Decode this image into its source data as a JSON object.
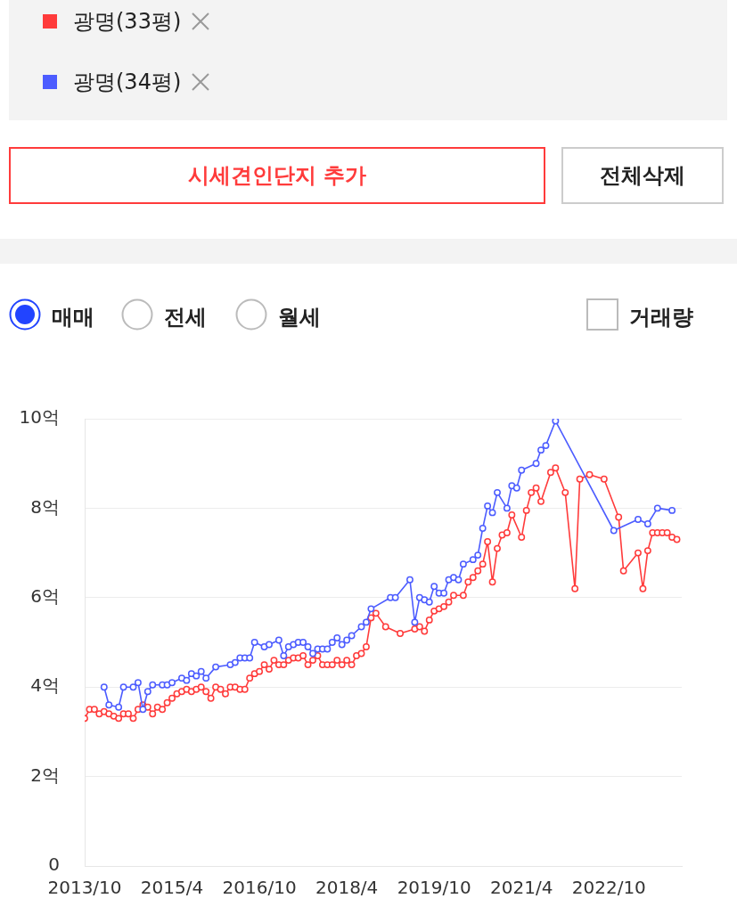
{
  "chart_data": {
    "type": "line",
    "legend": "top",
    "grid": "y",
    "marker": "circle",
    "line_style": "solid",
    "annotations": [
      "시세견인단지 추가",
      "전체삭제",
      "매매",
      "전세",
      "월세",
      "거래량"
    ],
    "xlim": [
      "2013-10",
      "2024-01"
    ],
    "xticks": [
      {
        "value": "2013-10",
        "label": "2013/10"
      },
      {
        "value": "2015-04",
        "label": "2015/4"
      },
      {
        "value": "2016-10",
        "label": "2016/10"
      },
      {
        "value": "2018-04",
        "label": "2018/4"
      },
      {
        "value": "2019-10",
        "label": "2019/10"
      },
      {
        "value": "2021-04",
        "label": "2021/4"
      },
      {
        "value": "2022-10",
        "label": "2022/10"
      }
    ],
    "ylim": [
      0,
      10
    ],
    "yticks": [
      0,
      {
        "value": 2,
        "label": "2억"
      },
      {
        "value": 4,
        "label": "4억"
      },
      {
        "value": 6,
        "label": "6억"
      },
      {
        "value": 8,
        "label": "8억"
      },
      {
        "value": 10,
        "label": "10억"
      }
    ],
    "series": [
      {
        "name": "광명(33평)",
        "color": "#ff3b3b",
        "x": [
          "2013-10",
          "2013-11",
          "2013-12",
          "2014-01",
          "2014-02",
          "2014-03",
          "2014-04",
          "2014-05",
          "2014-06",
          "2014-07",
          "2014-08",
          "2014-09",
          "2014-10",
          "2014-11",
          "2014-12",
          "2015-01",
          "2015-02",
          "2015-03",
          "2015-04",
          "2015-05",
          "2015-06",
          "2015-07",
          "2015-08",
          "2015-09",
          "2015-10",
          "2015-11",
          "2015-12",
          "2016-01",
          "2016-02",
          "2016-03",
          "2016-04",
          "2016-05",
          "2016-06",
          "2016-07",
          "2016-08",
          "2016-09",
          "2016-10",
          "2016-11",
          "2016-12",
          "2017-01",
          "2017-02",
          "2017-03",
          "2017-04",
          "2017-05",
          "2017-06",
          "2017-07",
          "2017-08",
          "2017-09",
          "2017-10",
          "2017-11",
          "2017-12",
          "2018-01",
          "2018-02",
          "2018-03",
          "2018-04",
          "2018-05",
          "2018-06",
          "2018-07",
          "2018-08",
          "2018-09",
          "2018-10",
          "2018-12",
          "2019-03",
          "2019-06",
          "2019-07",
          "2019-08",
          "2019-09",
          "2019-10",
          "2019-11",
          "2019-12",
          "2020-01",
          "2020-02",
          "2020-04",
          "2020-05",
          "2020-06",
          "2020-07",
          "2020-08",
          "2020-09",
          "2020-10",
          "2020-11",
          "2020-12",
          "2021-01",
          "2021-02",
          "2021-04",
          "2021-05",
          "2021-06",
          "2021-07",
          "2021-08",
          "2021-10",
          "2021-11",
          "2022-01",
          "2022-03",
          "2022-04",
          "2022-06",
          "2022-09",
          "2022-12",
          "2023-01",
          "2023-04",
          "2023-05",
          "2023-06",
          "2023-07",
          "2023-08",
          "2023-09",
          "2023-10",
          "2023-11",
          "2023-12"
        ],
        "values": [
          3.3,
          3.5,
          3.5,
          3.4,
          3.45,
          3.4,
          3.35,
          3.3,
          3.4,
          3.4,
          3.3,
          3.5,
          3.6,
          3.55,
          3.4,
          3.55,
          3.5,
          3.65,
          3.75,
          3.85,
          3.9,
          3.95,
          3.9,
          3.95,
          4.0,
          3.9,
          3.75,
          4.0,
          3.95,
          3.85,
          4.0,
          4.0,
          3.95,
          3.95,
          4.2,
          4.3,
          4.35,
          4.5,
          4.4,
          4.6,
          4.5,
          4.5,
          4.6,
          4.65,
          4.65,
          4.7,
          4.5,
          4.6,
          4.7,
          4.5,
          4.5,
          4.5,
          4.6,
          4.5,
          4.6,
          4.5,
          4.7,
          4.75,
          4.9,
          5.55,
          5.65,
          5.35,
          5.2,
          5.3,
          5.35,
          5.25,
          5.5,
          5.7,
          5.75,
          5.8,
          5.9,
          6.05,
          6.05,
          6.35,
          6.45,
          6.6,
          6.75,
          7.25,
          6.35,
          7.1,
          7.4,
          7.45,
          7.85,
          7.35,
          7.95,
          8.35,
          8.45,
          8.15,
          8.8,
          8.9,
          8.35,
          6.2,
          8.65,
          8.75,
          8.65,
          7.8,
          6.6,
          7.0,
          6.2,
          7.05,
          7.45,
          7.45,
          7.45,
          7.45,
          7.35,
          7.3
        ]
      },
      {
        "name": "광명(34평)",
        "color": "#4c5cff",
        "x": [
          "2014-02",
          "2014-03",
          "2014-05",
          "2014-06",
          "2014-08",
          "2014-09",
          "2014-10",
          "2014-11",
          "2014-12",
          "2015-02",
          "2015-03",
          "2015-04",
          "2015-06",
          "2015-07",
          "2015-08",
          "2015-09",
          "2015-10",
          "2015-11",
          "2016-01",
          "2016-04",
          "2016-05",
          "2016-06",
          "2016-07",
          "2016-08",
          "2016-09",
          "2016-11",
          "2016-12",
          "2017-02",
          "2017-03",
          "2017-04",
          "2017-05",
          "2017-06",
          "2017-07",
          "2017-08",
          "2017-09",
          "2017-10",
          "2017-11",
          "2017-12",
          "2018-01",
          "2018-02",
          "2018-03",
          "2018-04",
          "2018-05",
          "2018-07",
          "2018-08",
          "2018-09",
          "2019-01",
          "2019-02",
          "2019-05",
          "2019-06",
          "2019-07",
          "2019-08",
          "2019-09",
          "2019-10",
          "2019-11",
          "2019-12",
          "2020-01",
          "2020-02",
          "2020-03",
          "2020-04",
          "2020-06",
          "2020-07",
          "2020-08",
          "2020-09",
          "2020-10",
          "2020-11",
          "2021-01",
          "2021-02",
          "2021-03",
          "2021-04",
          "2021-07",
          "2021-08",
          "2021-09",
          "2021-11",
          "2022-11",
          "2023-04",
          "2023-06",
          "2023-08",
          "2023-11"
        ],
        "values": [
          4.0,
          3.6,
          3.55,
          4.0,
          4.0,
          4.1,
          3.5,
          3.9,
          4.05,
          4.05,
          4.05,
          4.1,
          4.2,
          4.15,
          4.3,
          4.25,
          4.35,
          4.2,
          4.45,
          4.5,
          4.55,
          4.65,
          4.65,
          4.65,
          5.0,
          4.9,
          4.95,
          5.05,
          4.7,
          4.9,
          4.95,
          5.0,
          5.0,
          4.9,
          4.75,
          4.85,
          4.85,
          4.85,
          5.0,
          5.1,
          4.95,
          5.05,
          5.15,
          5.35,
          5.45,
          5.75,
          6.0,
          6.0,
          6.4,
          5.45,
          6.0,
          5.95,
          5.9,
          6.25,
          6.1,
          6.1,
          6.4,
          6.45,
          6.4,
          6.75,
          6.85,
          6.95,
          7.55,
          8.05,
          7.9,
          8.35,
          8.0,
          8.5,
          8.45,
          8.85,
          9.0,
          9.3,
          9.4,
          9.95,
          7.5,
          7.75,
          7.65,
          8.0,
          7.95
        ]
      }
    ]
  }
}
